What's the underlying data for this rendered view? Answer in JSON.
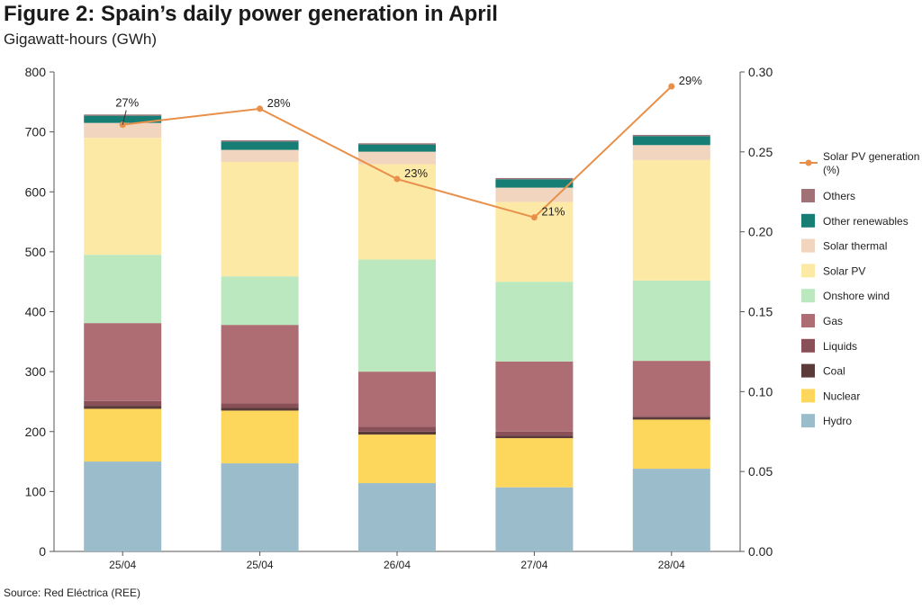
{
  "title": "Figure 2: Spain’s daily power generation in April",
  "subtitle": "Gigawatt-hours (GWh)",
  "source": "Source: Red Eléctrica (REE)",
  "chart_data": {
    "type": "bar",
    "stacked": true,
    "categories": [
      "25/04",
      "25/04",
      "26/04",
      "27/04",
      "28/04"
    ],
    "ylim": [
      0,
      800
    ],
    "yticks": [
      0,
      100,
      200,
      300,
      400,
      500,
      600,
      700,
      800
    ],
    "y2lim": [
      0,
      0.3
    ],
    "y2ticks": [
      "0.00",
      "0.05",
      "0.10",
      "0.15",
      "0.20",
      "0.25",
      "0.30"
    ],
    "legend_position": "right",
    "series": [
      {
        "name": "Hydro",
        "color": "#9bbccb",
        "values": [
          150,
          147,
          114,
          107,
          138
        ]
      },
      {
        "name": "Nuclear",
        "color": "#fcd75c",
        "values": [
          88,
          88,
          81,
          82,
          82
        ]
      },
      {
        "name": "Coal",
        "color": "#5b3a3a",
        "values": [
          5,
          5,
          5,
          4,
          4
        ]
      },
      {
        "name": "Liquids",
        "color": "#8a5058",
        "values": [
          8,
          7,
          8,
          7,
          2
        ]
      },
      {
        "name": "Gas",
        "color": "#ad6d73",
        "values": [
          130,
          131,
          92,
          117,
          92
        ]
      },
      {
        "name": "Onshore wind",
        "color": "#bce8c0",
        "values": [
          114,
          81,
          187,
          133,
          134
        ]
      },
      {
        "name": "Solar PV",
        "color": "#fde9a6",
        "values": [
          195,
          191,
          159,
          133,
          201
        ]
      },
      {
        "name": "Solar thermal",
        "color": "#f2d5be",
        "values": [
          25,
          20,
          21,
          24,
          25
        ]
      },
      {
        "name": "Other renewables",
        "color": "#177e75",
        "values": [
          12,
          14,
          12,
          14,
          15
        ]
      },
      {
        "name": "Others",
        "color": "#a07176",
        "values": [
          2,
          2,
          2,
          2,
          2
        ]
      }
    ],
    "line": {
      "name": "Solar PV generation (%)",
      "color": "#e8904a",
      "axis": "right",
      "values": [
        0.267,
        0.277,
        0.233,
        0.209,
        0.291
      ],
      "labels": [
        "27%",
        "28%",
        "23%",
        "21%",
        "29%"
      ]
    }
  }
}
